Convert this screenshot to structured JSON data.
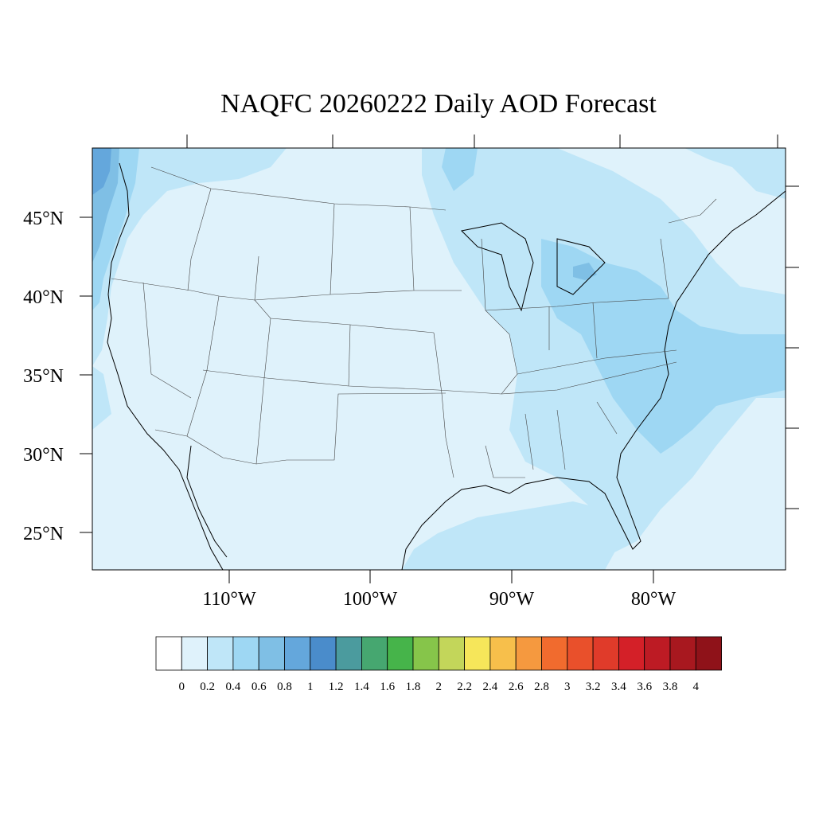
{
  "title": "NAQFC 20260222 Daily AOD Forecast",
  "lat_labels": [
    "45°N",
    "40°N",
    "35°N",
    "30°N",
    "25°N"
  ],
  "lon_labels": [
    "110°W",
    "100°W",
    "90°W",
    "80°W"
  ],
  "colorbar": {
    "labels": [
      "0",
      "0.2",
      "0.4",
      "0.6",
      "0.8",
      "1",
      "1.2",
      "1.4",
      "1.6",
      "1.8",
      "2",
      "2.2",
      "2.4",
      "2.6",
      "2.8",
      "3",
      "3.2",
      "3.4",
      "3.6",
      "3.8",
      "4"
    ],
    "colors": [
      "#ffffff",
      "#dff2fb",
      "#bfe6f8",
      "#9ed7f3",
      "#7fbfe5",
      "#64a7dc",
      "#4a8ccb",
      "#4b9b9e",
      "#46a770",
      "#46b44a",
      "#86c54a",
      "#c3d65a",
      "#f6e65a",
      "#f7bf4b",
      "#f5993f",
      "#f16b2e",
      "#e9502b",
      "#e03b2a",
      "#d42028",
      "#bd1b24",
      "#a8181f",
      "#8f1219"
    ]
  },
  "map_colors": {
    "background": "#dff2fb",
    "level_02": "#bfe6f8",
    "level_04": "#9ed7f3",
    "level_06": "#7fbfe5",
    "level_08": "#64a7dc"
  }
}
